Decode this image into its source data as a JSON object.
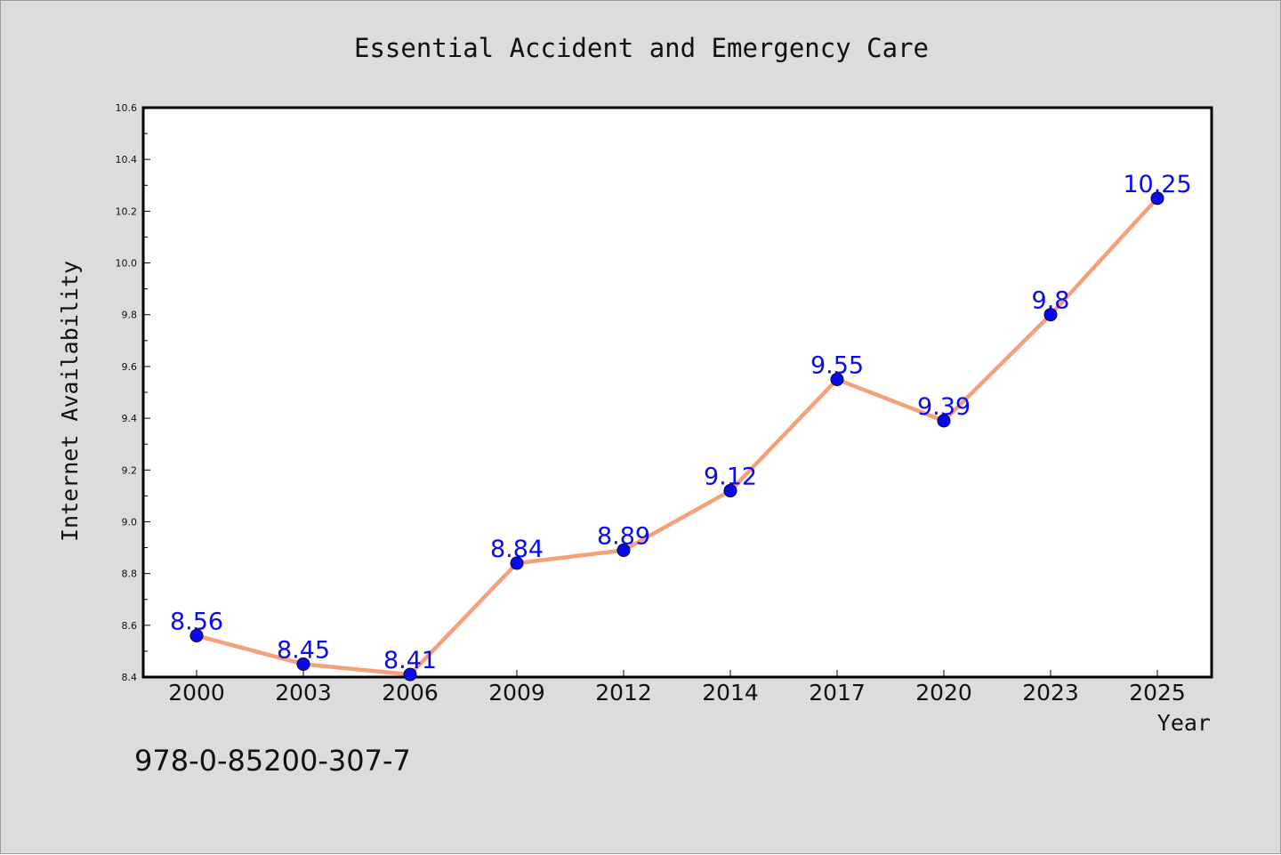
{
  "chart_data": {
    "type": "line",
    "title": "Essential Accident and Emergency Care",
    "xlabel": "Year",
    "ylabel": "Internet Availability",
    "categories": [
      "2000",
      "2003",
      "2006",
      "2009",
      "2012",
      "2014",
      "2017",
      "2020",
      "2023",
      "2025"
    ],
    "series": [
      {
        "values": [
          8.56,
          8.45,
          8.41,
          8.84,
          8.89,
          9.12,
          9.55,
          9.39,
          9.8,
          10.25
        ],
        "data_labels": [
          "8.56",
          "8.45",
          "8.41",
          "8.84",
          "8.89",
          "9.12",
          "9.55",
          "9.39",
          "9.8",
          "10.25"
        ],
        "line_color": "#f4a07a",
        "marker_color": "#0a0af0",
        "label_color": "#0a0af0"
      }
    ],
    "ylim": [
      8.4,
      10.6
    ],
    "y_ticks": [
      "8.4",
      "8.6",
      "8.8",
      "9.0",
      "9.2",
      "9.4",
      "9.6",
      "9.8",
      "10.0",
      "10.2",
      "10.4",
      "10.6"
    ],
    "grid": false,
    "legend": "none",
    "background_color": "#dcdcdc",
    "plot_background_color": "#ffffff"
  },
  "footer": {
    "text": "978-0-85200-307-7"
  }
}
